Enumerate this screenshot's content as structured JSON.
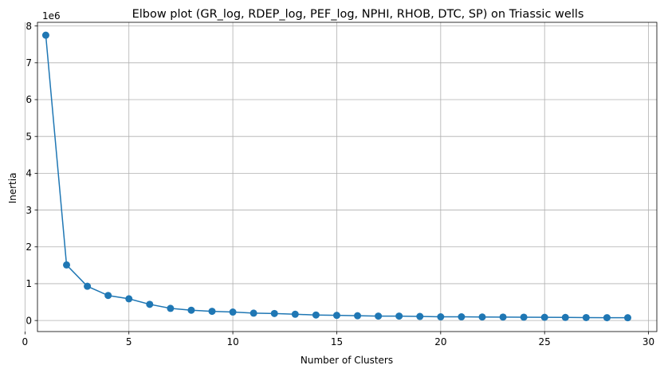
{
  "chart_data": {
    "type": "line",
    "title": "Elbow plot (GR_log, RDEP_log, PEF_log, NPHI, RHOB, DTC, SP) on Triassic wells",
    "xlabel": "Number of Clusters",
    "ylabel": "Inertia",
    "y_offset_label": "1e6",
    "xlim": [
      0.6,
      30.4
    ],
    "ylim": [
      -0.3,
      8.1
    ],
    "grid": true,
    "marker": "circle",
    "color": "#1f77b4",
    "xticks": [
      0,
      5,
      10,
      15,
      20,
      25,
      30
    ],
    "yticks": [
      0,
      1,
      2,
      3,
      4,
      5,
      6,
      7,
      8
    ],
    "x": [
      1,
      2,
      3,
      4,
      5,
      6,
      7,
      8,
      9,
      10,
      11,
      12,
      13,
      14,
      15,
      16,
      17,
      18,
      19,
      20,
      21,
      22,
      23,
      24,
      25,
      26,
      27,
      28,
      29
    ],
    "y": [
      7.75,
      1.51,
      0.93,
      0.68,
      0.59,
      0.44,
      0.33,
      0.28,
      0.25,
      0.23,
      0.2,
      0.19,
      0.17,
      0.15,
      0.14,
      0.13,
      0.12,
      0.12,
      0.11,
      0.1,
      0.1,
      0.095,
      0.093,
      0.09,
      0.087,
      0.083,
      0.08,
      0.077,
      0.075
    ],
    "y_unit_scale": "1e6"
  }
}
